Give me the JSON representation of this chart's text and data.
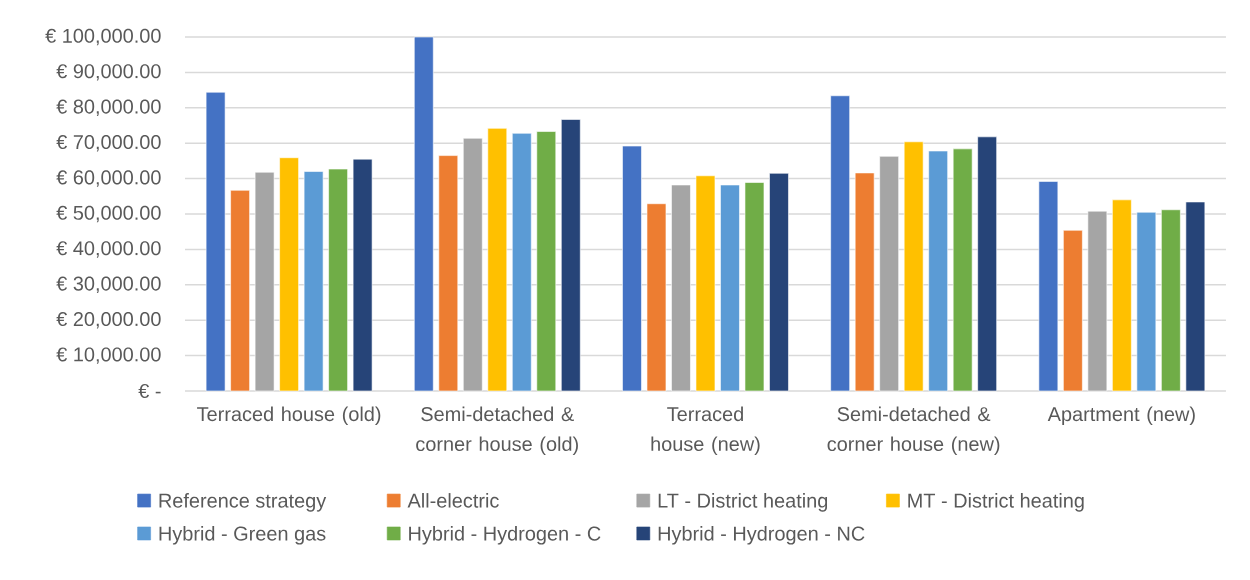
{
  "chart_data": {
    "type": "bar",
    "categories": [
      "Terraced house (old)",
      "Semi-detached & corner house (old)",
      "Terraced house (new)",
      "Semi-detached & corner house (new)",
      "Apartment (new)"
    ],
    "series": [
      {
        "name": "Reference strategy",
        "color": "#4472c4",
        "values": [
          84400,
          100000,
          69200,
          83400,
          59200
        ]
      },
      {
        "name": "All-electric",
        "color": "#ed7d31",
        "values": [
          56700,
          66500,
          52900,
          61600,
          45400
        ]
      },
      {
        "name": "LT - District heating",
        "color": "#a5a5a5",
        "values": [
          61800,
          71400,
          58200,
          66300,
          50800
        ]
      },
      {
        "name": "MT - District heating",
        "color": "#ffc000",
        "values": [
          65900,
          74200,
          60800,
          70400,
          54000
        ]
      },
      {
        "name": "Hybrid - Green gas",
        "color": "#5b9bd5",
        "values": [
          62000,
          72800,
          58200,
          67800,
          50500
        ]
      },
      {
        "name": "Hybrid - Hydrogen - C",
        "color": "#70ad47",
        "values": [
          62700,
          73300,
          58900,
          68400,
          51200
        ]
      },
      {
        "name": "Hybrid - Hydrogen - NC",
        "color": "#264478",
        "values": [
          65500,
          76700,
          61500,
          71800,
          53400
        ]
      }
    ],
    "ylim": [
      0,
      100000
    ],
    "yticks": [
      {
        "value": 0,
        "label": "€ -"
      },
      {
        "value": 10000,
        "label": "€ 10,000.00"
      },
      {
        "value": 20000,
        "label": "€ 20,000.00"
      },
      {
        "value": 30000,
        "label": "€ 30,000.00"
      },
      {
        "value": 40000,
        "label": "€ 40,000.00"
      },
      {
        "value": 50000,
        "label": "€ 50,000.00"
      },
      {
        "value": 60000,
        "label": "€ 60,000.00"
      },
      {
        "value": 70000,
        "label": "€ 70,000.00"
      },
      {
        "value": 80000,
        "label": "€ 80,000.00"
      },
      {
        "value": 90000,
        "label": "€ 90,000.00"
      },
      {
        "value": 100000,
        "label": "€ 100,000.00"
      }
    ],
    "grid": "y",
    "legend": "bottom"
  }
}
